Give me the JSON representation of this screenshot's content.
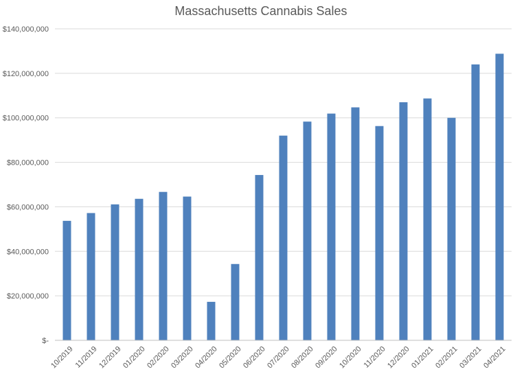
{
  "chart_data": {
    "type": "bar",
    "title": "Massachusetts Cannabis Sales",
    "xlabel": "",
    "ylabel": "",
    "ylim": [
      0,
      140000000
    ],
    "yticks": [
      0,
      20000000,
      40000000,
      60000000,
      80000000,
      100000000,
      120000000,
      140000000
    ],
    "ytick_labels": [
      "$-",
      "$20,000,000",
      "$40,000,000",
      "$60,000,000",
      "$80,000,000",
      "$100,000,000",
      "$120,000,000",
      "$140,000,000"
    ],
    "categories": [
      "10/2019",
      "11/2019",
      "12/2019",
      "01/2020",
      "02/2020",
      "03/2020",
      "04/2020",
      "05/2020",
      "06/2020",
      "07/2020",
      "08/2020",
      "09/2020",
      "10/2020",
      "11/2020",
      "12/2020",
      "01/2021",
      "02/2021",
      "03/2021",
      "04/2021"
    ],
    "values": [
      53700000,
      57200000,
      61100000,
      63600000,
      66700000,
      64600000,
      17300000,
      34300000,
      74300000,
      92000000,
      98300000,
      101900000,
      104700000,
      96300000,
      107000000,
      108700000,
      100000000,
      124000000,
      128800000
    ],
    "grid": true,
    "legend": "none",
    "bar_color": "#4f81bd"
  }
}
